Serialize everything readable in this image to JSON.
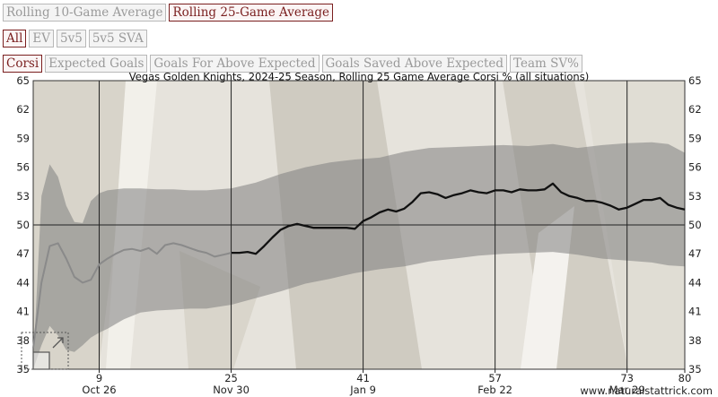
{
  "controls": {
    "window_buttons": [
      {
        "label": "Rolling 10-Game Average",
        "active": false
      },
      {
        "label": "Rolling 25-Game Average",
        "active": true
      }
    ],
    "situation_buttons": [
      {
        "label": "All",
        "active": true
      },
      {
        "label": "EV",
        "active": false
      },
      {
        "label": "5v5",
        "active": false
      },
      {
        "label": "5v5 SVA",
        "active": false
      }
    ],
    "metric_buttons": [
      {
        "label": "Corsi",
        "active": true
      },
      {
        "label": "Expected Goals",
        "active": false
      },
      {
        "label": "Goals For Above Expected",
        "active": false
      },
      {
        "label": "Goals Saved Above Expected",
        "active": false
      },
      {
        "label": "Team SV%",
        "active": false
      }
    ]
  },
  "chart_data": {
    "type": "line",
    "title": "Vegas Golden Knights, 2024-25 Season, Rolling 25 Game Average Corsi % (all situations)",
    "xlabel": "",
    "ylabel": "",
    "xlim": [
      1,
      80
    ],
    "ylim": [
      35,
      65
    ],
    "y_ticks": [
      35,
      38,
      41,
      44,
      47,
      50,
      53,
      56,
      59,
      62,
      65
    ],
    "x_ticks": [
      {
        "value": 9,
        "label": "9",
        "date": "Oct 26"
      },
      {
        "value": 25,
        "label": "25",
        "date": "Nov 30"
      },
      {
        "value": 41,
        "label": "41",
        "date": "Jan 9"
      },
      {
        "value": 57,
        "label": "57",
        "date": "Feb 22"
      },
      {
        "value": 73,
        "label": "73",
        "date": "Mar 29"
      },
      {
        "value": 80,
        "label": "80",
        "date": ""
      }
    ],
    "grid": true,
    "series": [
      {
        "role": "partial window (fewer than 25 games)",
        "color": "#8a8a8a",
        "x": [
          1,
          2,
          3,
          4,
          5,
          6,
          7,
          8,
          9,
          10,
          11,
          12,
          13,
          14,
          15,
          16,
          17,
          18,
          19,
          20,
          21,
          22,
          23,
          24,
          25
        ],
        "y": [
          37.2,
          44.0,
          47.8,
          48.1,
          46.5,
          44.6,
          44.0,
          44.3,
          45.9,
          46.5,
          47.0,
          47.4,
          47.5,
          47.3,
          47.6,
          47.0,
          47.9,
          48.1,
          47.9,
          47.6,
          47.3,
          47.1,
          46.7,
          46.9,
          47.1
        ]
      },
      {
        "role": "full 25-game rolling average",
        "color": "#111111",
        "x": [
          25,
          26,
          27,
          28,
          29,
          30,
          31,
          32,
          33,
          34,
          35,
          36,
          37,
          38,
          39,
          40,
          41,
          42,
          43,
          44,
          45,
          46,
          47,
          48,
          49,
          50,
          51,
          52,
          53,
          54,
          55,
          56,
          57,
          58,
          59,
          60,
          61,
          62,
          63,
          64,
          65,
          66,
          67,
          68,
          69,
          70,
          71,
          72,
          73,
          74,
          75,
          76,
          77,
          78,
          79,
          80
        ],
        "y": [
          47.1,
          47.1,
          47.2,
          47.0,
          47.8,
          48.7,
          49.5,
          49.9,
          50.1,
          49.9,
          49.7,
          49.7,
          49.7,
          49.7,
          49.7,
          49.6,
          50.4,
          50.8,
          51.3,
          51.6,
          51.4,
          51.7,
          52.4,
          53.3,
          53.4,
          53.2,
          52.8,
          53.1,
          53.3,
          53.6,
          53.4,
          53.3,
          53.6,
          53.6,
          53.4,
          53.7,
          53.6,
          53.6,
          53.7,
          54.3,
          53.4,
          53.0,
          52.8,
          52.5,
          52.5,
          52.3,
          52.0,
          51.6,
          51.8,
          52.2,
          52.6,
          52.6,
          52.8,
          52.1,
          51.8,
          51.6
        ]
      }
    ],
    "band": {
      "role": "shaded range",
      "x": [
        1,
        2,
        3,
        4,
        5,
        6,
        7,
        8,
        9,
        10,
        12,
        14,
        16,
        18,
        20,
        22,
        25,
        28,
        31,
        34,
        37,
        40,
        43,
        46,
        49,
        52,
        55,
        58,
        61,
        64,
        67,
        70,
        73,
        76,
        78,
        80
      ],
      "upper": [
        35.5,
        53.0,
        56.3,
        55.0,
        52.0,
        50.3,
        50.2,
        52.5,
        53.3,
        53.6,
        53.8,
        53.8,
        53.7,
        53.7,
        53.6,
        53.6,
        53.8,
        54.4,
        55.3,
        56.0,
        56.5,
        56.8,
        57.0,
        57.6,
        58.0,
        58.1,
        58.2,
        58.3,
        58.2,
        58.4,
        58.0,
        58.3,
        58.5,
        58.6,
        58.4,
        57.5
      ],
      "lower": [
        35.0,
        37.5,
        39.5,
        38.5,
        37.0,
        36.8,
        37.5,
        38.3,
        38.8,
        39.2,
        40.2,
        40.9,
        41.1,
        41.2,
        41.3,
        41.3,
        41.7,
        42.4,
        43.1,
        43.9,
        44.4,
        45.0,
        45.4,
        45.7,
        46.2,
        46.5,
        46.8,
        47.0,
        47.1,
        47.2,
        46.9,
        46.5,
        46.3,
        46.1,
        45.8,
        45.7
      ]
    }
  },
  "watermark": "www.naturalstattrick.com",
  "colors": {
    "active_button": "#7a1f1f",
    "band": "#7f7f7f",
    "partial_line": "#8a8a8a",
    "main_line": "#111111"
  }
}
